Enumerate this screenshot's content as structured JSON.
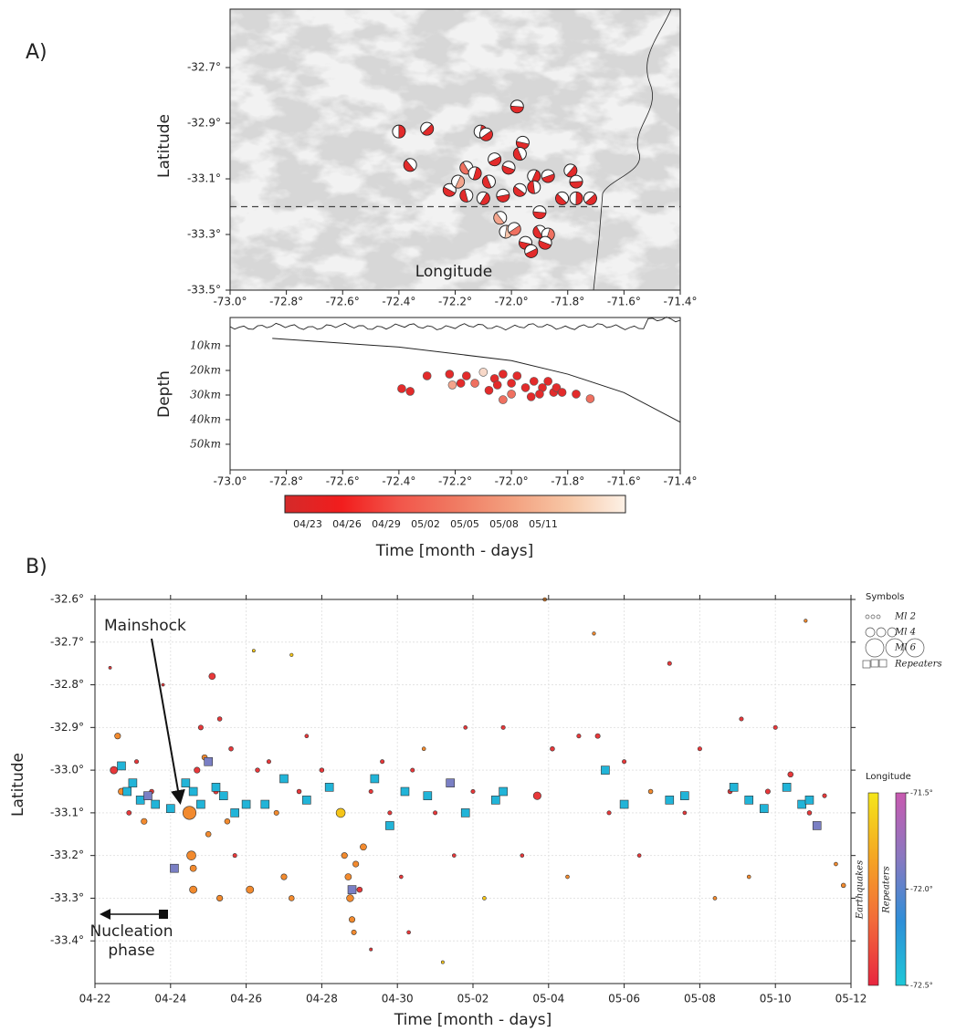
{
  "panel_labels": [
    "A)",
    "B)"
  ],
  "chart_data": [
    {
      "type": "beachball-map",
      "ylabel": "Latitude",
      "xlabel": "Longitude",
      "xlim": [
        -73.0,
        -71.4
      ],
      "ylim": [
        -33.5,
        -32.49
      ],
      "xticks": [
        {
          "value": -73.0,
          "label": "-73.0°"
        },
        {
          "value": -72.8,
          "label": "-72.8°"
        },
        {
          "value": -72.6,
          "label": "-72.6°"
        },
        {
          "value": -72.4,
          "label": "-72.4°"
        },
        {
          "value": -72.2,
          "label": "-72.2°"
        },
        {
          "value": -72.0,
          "label": "-72.0°"
        },
        {
          "value": -71.8,
          "label": "-71.8°"
        },
        {
          "value": -71.6,
          "label": "-71.6°"
        },
        {
          "value": -71.4,
          "label": "-71.4°"
        }
      ],
      "yticks": [
        {
          "value": -32.7,
          "label": "-32.7°"
        },
        {
          "value": -32.9,
          "label": "-32.9°"
        },
        {
          "value": -33.1,
          "label": "-33.1°"
        },
        {
          "value": -33.3,
          "label": "-33.3°"
        },
        {
          "value": -33.5,
          "label": "-33.5°"
        }
      ],
      "profile_lat": -33.2,
      "x": [
        -72.4,
        -72.3,
        -71.98,
        -72.36,
        -72.11,
        -72.09,
        -71.96,
        -72.16,
        -72.13,
        -72.06,
        -72.01,
        -71.97,
        -71.92,
        -71.87,
        -72.22,
        -72.16,
        -72.1,
        -72.03,
        -71.97,
        -71.92,
        -71.79,
        -71.77,
        -71.82,
        -71.77,
        -71.72,
        -71.9,
        -72.04,
        -72.02,
        -71.99,
        -71.95,
        -71.9,
        -71.87,
        -71.93,
        -71.88,
        -72.08,
        -72.19
      ],
      "y": [
        -32.93,
        -32.92,
        -32.84,
        -33.05,
        -32.93,
        -32.94,
        -32.97,
        -33.06,
        -33.08,
        -33.03,
        -33.06,
        -33.01,
        -33.09,
        -33.09,
        -33.14,
        -33.16,
        -33.17,
        -33.16,
        -33.14,
        -33.13,
        -33.07,
        -33.11,
        -33.17,
        -33.17,
        -33.17,
        -33.22,
        -33.24,
        -33.29,
        -33.28,
        -33.33,
        -33.29,
        -33.3,
        -33.36,
        -33.33,
        -33.11,
        -33.11
      ],
      "colors": [
        "#e32b2b",
        "#e32b2b",
        "#e32b2b",
        "#e32b2b",
        "#e32b2b",
        "#e32b2b",
        "#e32b2b",
        "#ef7060",
        "#e32b2b",
        "#e32b2b",
        "#e32b2b",
        "#e32b2b",
        "#e32b2b",
        "#e32b2b",
        "#e32b2b",
        "#e32b2b",
        "#e32b2b",
        "#e32b2b",
        "#e32b2b",
        "#e32b2b",
        "#e32b2b",
        "#e32b2b",
        "#e32b2b",
        "#e32b2b",
        "#e32b2b",
        "#e32b2b",
        "#f3a48c",
        "#f7c4aa",
        "#ef7060",
        "#e32b2b",
        "#e32b2b",
        "#ef7060",
        "#e32b2b",
        "#e32b2b",
        "#e32b2b",
        "#f3a48c"
      ]
    },
    {
      "type": "depth-section",
      "ylabel": "Depth",
      "xlim": [
        -73.0,
        -71.4
      ],
      "ylim": [
        -1.5,
        60.4
      ],
      "invert_y": true,
      "xticks": [
        {
          "value": -73.0,
          "label": "-73.0°"
        },
        {
          "value": -72.8,
          "label": "-72.8°"
        },
        {
          "value": -72.6,
          "label": "-72.6°"
        },
        {
          "value": -72.4,
          "label": "-72.4°"
        },
        {
          "value": -72.2,
          "label": "-72.2°"
        },
        {
          "value": -72.0,
          "label": "-72.0°"
        },
        {
          "value": -71.8,
          "label": "-71.8°"
        },
        {
          "value": -71.6,
          "label": "-71.6°"
        },
        {
          "value": -71.4,
          "label": "-71.4°"
        }
      ],
      "yticks": [
        {
          "value": 10,
          "label": "10km"
        },
        {
          "value": 20,
          "label": "20km"
        },
        {
          "value": 30,
          "label": "30km"
        },
        {
          "value": 40,
          "label": "40km"
        },
        {
          "value": 50,
          "label": "50km"
        }
      ],
      "slab": {
        "x": [
          -72.85,
          -72.4,
          -72.0,
          -71.8,
          -71.6,
          -71.4
        ],
        "y": [
          7,
          10.5,
          16,
          21.5,
          29,
          41
        ]
      },
      "x": [
        -72.39,
        -72.36,
        -72.3,
        -72.22,
        -72.21,
        -72.16,
        -72.13,
        -72.1,
        -72.06,
        -72.05,
        -72.03,
        -72.0,
        -71.98,
        -72.03,
        -72.0,
        -71.95,
        -71.92,
        -71.89,
        -71.87,
        -71.85,
        -71.84,
        -71.82,
        -71.77,
        -71.72,
        -71.93,
        -72.08,
        -72.18,
        -71.9
      ],
      "y": [
        27.4,
        28.5,
        22.2,
        21.5,
        25.9,
        22.2,
        25.2,
        20.7,
        23.3,
        25.9,
        21.5,
        25.2,
        22.2,
        31.9,
        29.6,
        27.0,
        24.4,
        27.0,
        24.4,
        28.9,
        27.0,
        28.9,
        29.6,
        31.5,
        30.7,
        28.1,
        25.2,
        29.6
      ],
      "colors": [
        "#e32b2b",
        "#e32b2b",
        "#e32b2b",
        "#e32b2b",
        "#f3a48c",
        "#e32b2b",
        "#ef7060",
        "#f7d8c8",
        "#e32b2b",
        "#e32b2b",
        "#e32b2b",
        "#e32b2b",
        "#e32b2b",
        "#ef7060",
        "#ef7060",
        "#e32b2b",
        "#e32b2b",
        "#e32b2b",
        "#e32b2b",
        "#e32b2b",
        "#e32b2b",
        "#e32b2b",
        "#e32b2b",
        "#ef7060",
        "#e32b2b",
        "#e32b2b",
        "#e32b2b",
        "#e32b2b"
      ]
    },
    {
      "type": "colorbar",
      "label": "Time [month - days]",
      "categories": [
        "04/23",
        "04/26",
        "04/29",
        "05/02",
        "05/05",
        "05/08",
        "05/11"
      ],
      "colors": [
        "#d42a2a",
        "#f21d1d",
        "#f2554a",
        "#f07a62",
        "#f3a07f",
        "#f7c7a6",
        "#fdf1e6"
      ]
    },
    {
      "type": "scatter",
      "ylabel": "Latitude",
      "xlabel": "Time [month - days]",
      "xlim": [
        0,
        20
      ],
      "ylim": [
        -33.5,
        -32.6
      ],
      "xticks": [
        {
          "value": 0,
          "label": "04-22"
        },
        {
          "value": 2,
          "label": "04-24"
        },
        {
          "value": 4,
          "label": "04-26"
        },
        {
          "value": 6,
          "label": "04-28"
        },
        {
          "value": 8,
          "label": "04-30"
        },
        {
          "value": 10,
          "label": "05-02"
        },
        {
          "value": 12,
          "label": "05-04"
        },
        {
          "value": 14,
          "label": "05-06"
        },
        {
          "value": 16,
          "label": "05-08"
        },
        {
          "value": 18,
          "label": "05-10"
        },
        {
          "value": 20,
          "label": "05-12"
        }
      ],
      "yticks": [
        {
          "value": -32.6,
          "label": "-32.6°"
        },
        {
          "value": -32.7,
          "label": "-32.7°"
        },
        {
          "value": -32.8,
          "label": "-32.8°"
        },
        {
          "value": -32.9,
          "label": "-32.9°"
        },
        {
          "value": -33.0,
          "label": "-33.0°"
        },
        {
          "value": -33.1,
          "label": "-33.1°"
        },
        {
          "value": -33.2,
          "label": "-33.2°"
        },
        {
          "value": -33.3,
          "label": "-33.3°"
        },
        {
          "value": -33.4,
          "label": "-33.4°"
        }
      ],
      "grid": true,
      "annotations": {
        "mainshock": "Mainshock",
        "nucleation": [
          "Nucleation",
          "phase"
        ]
      },
      "symbols_title": "Symbols",
      "size_legend": [
        {
          "value": 2,
          "label": "Ml 2"
        },
        {
          "value": 4,
          "label": "Ml 4"
        },
        {
          "value": 6,
          "label": "Ml 6"
        }
      ],
      "colorbar": {
        "title": "Longitude",
        "clim": [
          -72.5,
          -71.5
        ],
        "ticks": [
          {
            "value": -71.5,
            "label": "-71.5°"
          },
          {
            "value": -72.0,
            "label": "-72.0°"
          },
          {
            "value": -72.5,
            "label": "-72.5°"
          }
        ],
        "earthquake_colors": [
          "#f5e61a",
          "#f5a623",
          "#f26a3a",
          "#e8263f"
        ],
        "repeater_colors": [
          "#c85ab0",
          "#8a78c0",
          "#2f8fd8",
          "#1ec8d8"
        ]
      },
      "series": [
        {
          "name": "Earthquakes",
          "x": [
            0.5,
            0.6,
            0.7,
            0.9,
            1.1,
            1.3,
            1.5,
            0.4,
            1.8,
            2.5,
            2.55,
            2.6,
            2.6,
            2.7,
            2.8,
            2.9,
            3.0,
            3.1,
            3.2,
            3.3,
            3.5,
            3.6,
            3.7,
            3.3,
            4.1,
            4.3,
            4.6,
            4.8,
            5.0,
            5.2,
            5.4,
            4.2,
            5.2,
            5.6,
            6.0,
            6.5,
            6.6,
            6.7,
            6.75,
            6.8,
            6.9,
            6.85,
            7.0,
            7.1,
            7.3,
            7.6,
            7.8,
            8.1,
            8.3,
            8.4,
            8.7,
            9.0,
            9.5,
            9.8,
            10.0,
            10.3,
            10.8,
            11.3,
            11.7,
            11.9,
            12.1,
            12.5,
            12.8,
            13.2,
            13.3,
            13.6,
            14.0,
            14.4,
            14.7,
            15.2,
            15.6,
            16.0,
            16.4,
            16.8,
            17.1,
            17.3,
            17.8,
            18.0,
            18.4,
            18.8,
            18.9,
            19.3,
            19.6,
            19.8,
            9.2,
            7.3
          ],
          "y": [
            -33.0,
            -32.92,
            -33.05,
            -33.1,
            -32.98,
            -33.12,
            -33.05,
            -32.76,
            -32.8,
            -33.1,
            -33.2,
            -33.28,
            -33.23,
            -33.0,
            -32.9,
            -32.97,
            -33.15,
            -32.78,
            -33.05,
            -32.88,
            -33.12,
            -32.95,
            -33.2,
            -33.3,
            -33.28,
            -33.0,
            -32.98,
            -33.1,
            -33.25,
            -33.3,
            -33.05,
            -32.72,
            -32.73,
            -32.92,
            -33.0,
            -33.1,
            -33.2,
            -33.25,
            -33.3,
            -33.35,
            -33.22,
            -33.38,
            -33.28,
            -33.18,
            -33.05,
            -32.98,
            -33.1,
            -33.25,
            -33.38,
            -33.0,
            -32.95,
            -33.1,
            -33.2,
            -32.9,
            -33.05,
            -33.3,
            -32.9,
            -33.2,
            -33.06,
            -32.6,
            -32.95,
            -33.25,
            -32.92,
            -32.68,
            -32.92,
            -33.1,
            -32.98,
            -33.2,
            -33.05,
            -32.75,
            -33.1,
            -32.95,
            -33.3,
            -33.05,
            -32.88,
            -33.25,
            -33.05,
            -32.9,
            -33.01,
            -32.65,
            -33.1,
            -33.06,
            -33.22,
            -33.27,
            -33.45,
            -33.42
          ],
          "sizes": [
            3.5,
            3.0,
            3.2,
            2.5,
            2.2,
            3.0,
            2.4,
            1.5,
            1.5,
            5.0,
            4.0,
            3.5,
            3.2,
            3.0,
            2.6,
            2.8,
            2.8,
            3.2,
            2.6,
            2.4,
            2.8,
            2.4,
            2.2,
            3.0,
            3.5,
            2.4,
            2.2,
            2.6,
            3.0,
            2.8,
            2.4,
            1.6,
            1.8,
            2.0,
            2.4,
            4.0,
            3.0,
            3.2,
            3.4,
            3.0,
            3.0,
            2.6,
            2.8,
            3.2,
            2.2,
            2.2,
            2.2,
            2.0,
            2.0,
            2.2,
            2.0,
            2.2,
            2.0,
            2.0,
            2.2,
            2.0,
            2.2,
            2.0,
            3.6,
            2.0,
            2.4,
            2.0,
            2.2,
            1.8,
            2.6,
            2.2,
            2.2,
            2.0,
            2.4,
            2.2,
            2.0,
            2.2,
            2.0,
            2.4,
            2.2,
            2.0,
            2.6,
            2.2,
            2.8,
            1.8,
            2.4,
            2.2,
            2.0,
            2.4,
            1.6,
            1.6
          ],
          "colors": [
            "#e8383a",
            "#f28a2e",
            "#f28a2e",
            "#e8383a",
            "#e8383a",
            "#f28a2e",
            "#e8383a",
            "#e8383a",
            "#e8383a",
            "#f28a2e",
            "#f28a2e",
            "#f28a2e",
            "#f28a2e",
            "#e8383a",
            "#e8383a",
            "#f28a2e",
            "#f28a2e",
            "#e8383a",
            "#e8383a",
            "#e8383a",
            "#f28a2e",
            "#e8383a",
            "#e8383a",
            "#f28a2e",
            "#f28a2e",
            "#e8383a",
            "#e8383a",
            "#f28a2e",
            "#f28a2e",
            "#f28a2e",
            "#e8383a",
            "#f5c518",
            "#f5c518",
            "#e8383a",
            "#e8383a",
            "#f5c518",
            "#f28a2e",
            "#f28a2e",
            "#f28a2e",
            "#f28a2e",
            "#f28a2e",
            "#f28a2e",
            "#e8383a",
            "#f28a2e",
            "#e8383a",
            "#e8383a",
            "#e8383a",
            "#e8383a",
            "#e8383a",
            "#e8383a",
            "#f28a2e",
            "#e8383a",
            "#e8383a",
            "#e8383a",
            "#e8383a",
            "#f5c518",
            "#e8383a",
            "#e8383a",
            "#e8383a",
            "#f28a2e",
            "#e8383a",
            "#f28a2e",
            "#e8383a",
            "#f28a2e",
            "#e8383a",
            "#e8383a",
            "#e8383a",
            "#e8383a",
            "#f28a2e",
            "#e8383a",
            "#e8383a",
            "#e8383a",
            "#f28a2e",
            "#e8383a",
            "#e8383a",
            "#f28a2e",
            "#e8383a",
            "#e8383a",
            "#e8383a",
            "#f28a2e",
            "#e8383a",
            "#e8383a",
            "#f28a2e",
            "#f28a2e",
            "#f5c518",
            "#e8383a"
          ]
        },
        {
          "name": "Repeaters",
          "x": [
            0.7,
            0.85,
            1.0,
            1.2,
            1.4,
            1.6,
            2.0,
            2.4,
            2.6,
            2.8,
            3.0,
            3.2,
            3.4,
            3.7,
            4.0,
            4.5,
            5.0,
            5.6,
            6.2,
            6.8,
            7.4,
            7.8,
            8.2,
            8.8,
            9.4,
            9.8,
            10.6,
            10.8,
            13.5,
            14.0,
            15.2,
            15.6,
            16.9,
            17.3,
            17.7,
            18.3,
            18.7,
            18.9,
            19.1,
            2.1
          ],
          "y": [
            -32.99,
            -33.05,
            -33.03,
            -33.07,
            -33.06,
            -33.08,
            -33.09,
            -33.03,
            -33.05,
            -33.08,
            -32.98,
            -33.04,
            -33.06,
            -33.1,
            -33.08,
            -33.08,
            -33.02,
            -33.07,
            -33.04,
            -33.28,
            -33.02,
            -33.13,
            -33.05,
            -33.06,
            -33.03,
            -33.1,
            -33.07,
            -33.05,
            -33.0,
            -33.08,
            -33.07,
            -33.06,
            -33.04,
            -33.07,
            -33.09,
            -33.04,
            -33.08,
            -33.07,
            -33.13,
            -33.23
          ],
          "colors": [
            "#21b4d8",
            "#21b4d8",
            "#21b4d8",
            "#21b4d8",
            "#7a7fc4",
            "#21b4d8",
            "#21b4d8",
            "#21b4d8",
            "#21b4d8",
            "#21b4d8",
            "#7a7fc4",
            "#21b4d8",
            "#21b4d8",
            "#21b4d8",
            "#21b4d8",
            "#21b4d8",
            "#21b4d8",
            "#21b4d8",
            "#21b4d8",
            "#7a7fc4",
            "#21b4d8",
            "#21b4d8",
            "#21b4d8",
            "#21b4d8",
            "#7a7fc4",
            "#21b4d8",
            "#21b4d8",
            "#21b4d8",
            "#21b4d8",
            "#21b4d8",
            "#21b4d8",
            "#21b4d8",
            "#21b4d8",
            "#21b4d8",
            "#21b4d8",
            "#21b4d8",
            "#21b4d8",
            "#21b4d8",
            "#7a7fc4",
            "#7a7fc4"
          ]
        }
      ]
    }
  ]
}
